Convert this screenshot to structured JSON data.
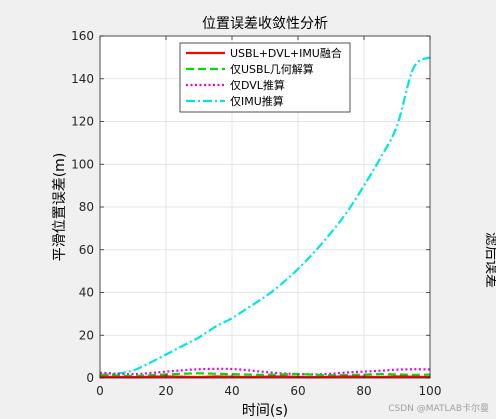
{
  "chart_data": {
    "type": "line",
    "title": "位置误差收敛性分析",
    "xlabel": "时间(s)",
    "ylabel": "平滑位置误差(m)",
    "xlim": [
      0,
      100
    ],
    "ylim": [
      0,
      160
    ],
    "xticks": [
      0,
      20,
      40,
      60,
      80,
      100
    ],
    "yticks": [
      0,
      20,
      40,
      60,
      80,
      100,
      120,
      140,
      160
    ],
    "grid": true,
    "legend_position": "top",
    "x": [
      0,
      5,
      10,
      15,
      20,
      25,
      30,
      35,
      40,
      45,
      50,
      55,
      60,
      65,
      70,
      75,
      80,
      85,
      90,
      95,
      100
    ],
    "series": [
      {
        "name": "USBL+DVL+IMU融合",
        "color": "#ff0000",
        "style": "solid",
        "values": [
          0.6,
          0.5,
          0.4,
          0.6,
          0.7,
          0.6,
          0.5,
          0.7,
          0.6,
          0.5,
          0.6,
          0.7,
          0.5,
          0.4,
          0.6,
          0.7,
          0.6,
          0.5,
          0.7,
          0.6,
          0.5
        ]
      },
      {
        "name": "仅USBL几何解算",
        "color": "#00dd00",
        "style": "dashed",
        "values": [
          1.5,
          1.2,
          1.0,
          1.3,
          1.7,
          2.0,
          2.2,
          2.0,
          1.8,
          1.6,
          1.5,
          1.7,
          1.8,
          1.5,
          1.3,
          1.4,
          1.6,
          1.8,
          1.7,
          1.5,
          1.6
        ]
      },
      {
        "name": "仅DVL推算",
        "color": "#ee00ee",
        "style": "dotted",
        "values": [
          2.5,
          2.0,
          1.8,
          2.3,
          3.0,
          3.6,
          4.1,
          4.3,
          4.2,
          3.6,
          2.8,
          2.2,
          1.8,
          1.7,
          2.0,
          2.6,
          3.0,
          3.4,
          3.9,
          4.1,
          4.0
        ]
      },
      {
        "name": "仅IMU推算",
        "color": "#00e5e5",
        "style": "dashdot",
        "values": [
          1.5,
          2.0,
          3.5,
          7,
          11,
          15,
          19,
          24,
          28,
          33,
          38,
          44,
          51,
          59,
          68,
          78,
          90,
          103,
          118,
          145,
          150
        ]
      }
    ]
  },
  "watermark": "CSDN @MATLAB卡尔曼",
  "cut_label_right": "滤后误差"
}
